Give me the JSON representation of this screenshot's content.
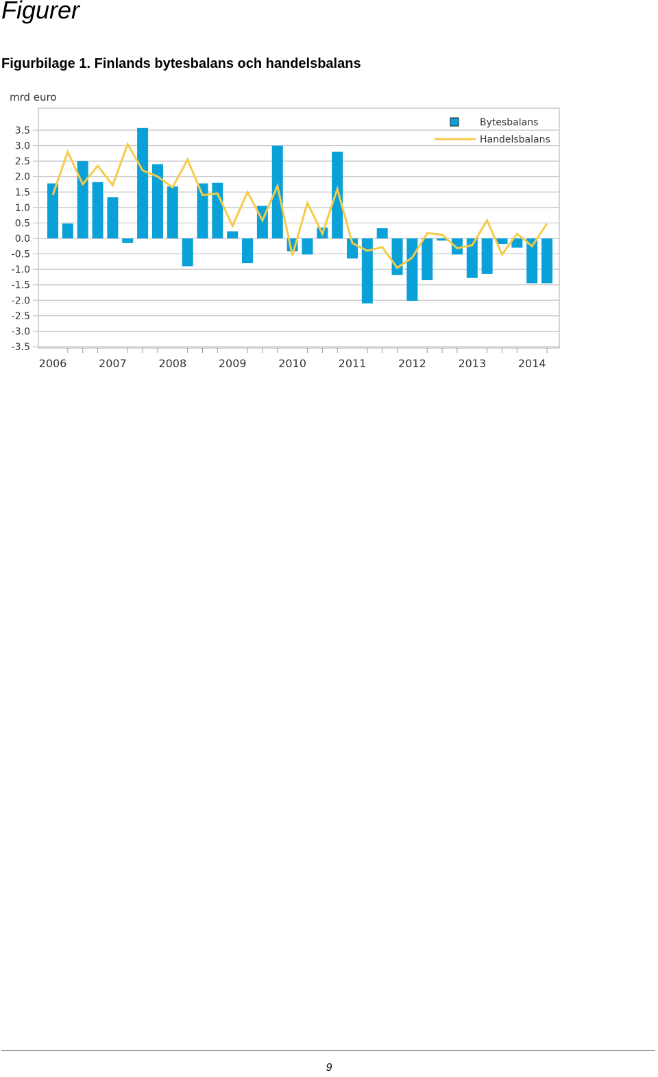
{
  "page": {
    "heading": "Figurer",
    "caption": "Figurbilage 1. Finlands bytesbalans och handelsbalans",
    "page_number": "9"
  },
  "chart_data": {
    "type": "bar",
    "title": "Figurbilage 1. Finlands bytesbalans och handelsbalans",
    "ylabel": "mrd euro",
    "xlabel": "",
    "ylim": [
      -3.5,
      3.5
    ],
    "yticks": [
      3.5,
      3.0,
      2.5,
      2.0,
      1.5,
      1.0,
      0.5,
      0.0,
      -0.5,
      -1.0,
      -1.5,
      -2.0,
      -2.5,
      -3.0,
      -3.5
    ],
    "year_labels": [
      "2006",
      "2007",
      "2008",
      "2009",
      "2010",
      "2011",
      "2012",
      "2013",
      "2014"
    ],
    "categories": [
      "2006Q1",
      "2006Q2",
      "2006Q3",
      "2006Q4",
      "2007Q1",
      "2007Q2",
      "2007Q3",
      "2007Q4",
      "2008Q1",
      "2008Q2",
      "2008Q3",
      "2008Q4",
      "2009Q1",
      "2009Q2",
      "2009Q3",
      "2009Q4",
      "2010Q1",
      "2010Q2",
      "2010Q3",
      "2010Q4",
      "2011Q1",
      "2011Q2",
      "2011Q3",
      "2011Q4",
      "2012Q1",
      "2012Q2",
      "2012Q3",
      "2012Q4",
      "2013Q1",
      "2013Q2",
      "2013Q3",
      "2013Q4",
      "2014Q1",
      "2014Q2"
    ],
    "series": [
      {
        "name": "Bytesbalans",
        "kind": "bar",
        "color": "#0aa0d8",
        "values": [
          1.78,
          0.48,
          2.5,
          1.82,
          1.33,
          -0.15,
          3.57,
          2.4,
          1.68,
          -0.9,
          1.78,
          1.8,
          0.23,
          -0.8,
          1.05,
          3.0,
          -0.42,
          -0.52,
          0.35,
          2.8,
          -0.65,
          -2.1,
          0.33,
          -1.18,
          -2.02,
          -1.35,
          -0.07,
          -0.52,
          -1.28,
          -1.15,
          -0.18,
          -0.3,
          -1.45,
          -1.45
        ]
      },
      {
        "name": "Handelsbalans",
        "kind": "line",
        "color": "#f5cb4a",
        "values": [
          1.4,
          2.8,
          1.75,
          2.35,
          1.72,
          3.05,
          2.2,
          2.0,
          1.65,
          2.55,
          1.4,
          1.45,
          0.4,
          1.5,
          0.58,
          1.7,
          -0.55,
          1.15,
          0.15,
          1.6,
          -0.15,
          -0.4,
          -0.28,
          -0.95,
          -0.62,
          0.17,
          0.12,
          -0.32,
          -0.22,
          0.58,
          -0.52,
          0.15,
          -0.25,
          0.48
        ]
      }
    ],
    "legend": {
      "position": "top-right",
      "entries": [
        "Bytesbalans",
        "Handelsbalans"
      ]
    },
    "grid": true
  }
}
